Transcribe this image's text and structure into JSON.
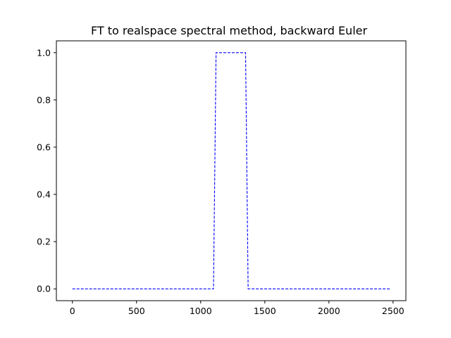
{
  "chart_data": {
    "type": "line",
    "title": "FT to realspace  spectral method, backward Euler",
    "xlabel": "",
    "ylabel": "",
    "xlim": [
      -125,
      2600
    ],
    "ylim": [
      -0.05,
      1.05
    ],
    "grid": false,
    "legend": "none",
    "x_ticks": [
      0,
      500,
      1000,
      1500,
      2000,
      2500
    ],
    "x_tick_labels": [
      "0",
      "500",
      "1000",
      "1500",
      "2000",
      "2500"
    ],
    "y_ticks": [
      0.0,
      0.2,
      0.4,
      0.6,
      0.8,
      1.0
    ],
    "y_tick_labels": [
      "0.0",
      "0.2",
      "0.4",
      "0.6",
      "0.8",
      "1.0"
    ],
    "series": [
      {
        "color": "#0000ff",
        "line_style": "dashed",
        "x": [
          0,
          1100,
          1120,
          1350,
          1370,
          2475
        ],
        "y": [
          0,
          0,
          1,
          1,
          0,
          0
        ]
      }
    ]
  }
}
